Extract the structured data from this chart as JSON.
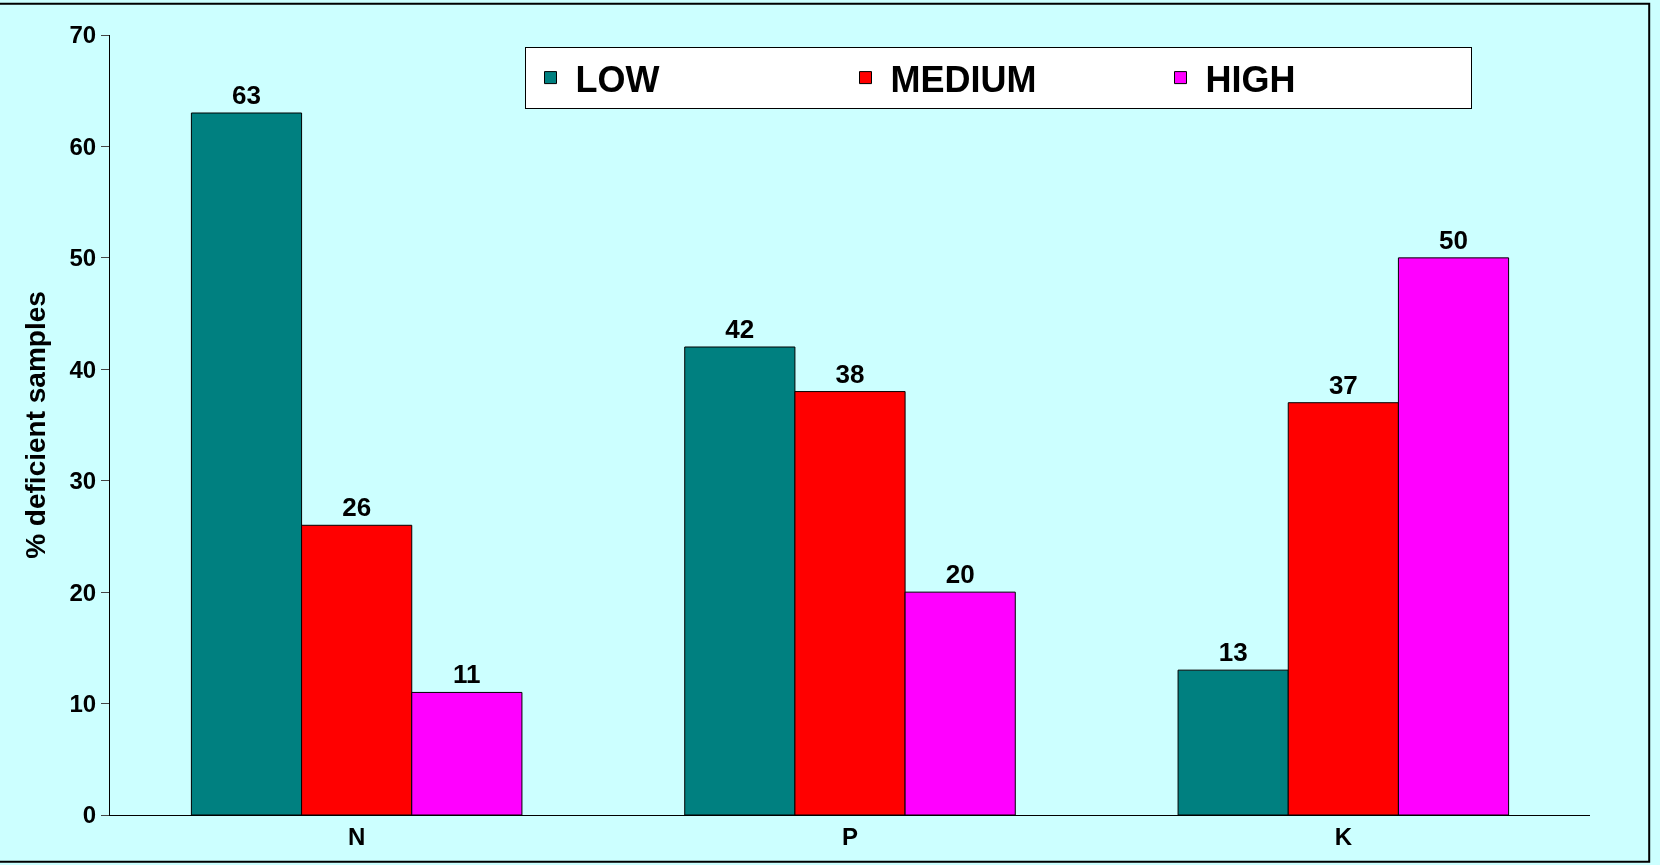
{
  "chart_data": {
    "type": "bar",
    "ylabel": "% deficient samples",
    "categories": [
      "N",
      "P",
      "K"
    ],
    "series": [
      {
        "name": "LOW",
        "color": "#008080",
        "values": [
          63,
          42,
          13
        ]
      },
      {
        "name": "MEDIUM",
        "color": "#ff0000",
        "values": [
          26,
          38,
          37
        ]
      },
      {
        "name": "HIGH",
        "color": "#ff00ff",
        "values": [
          11,
          20,
          50
        ]
      }
    ],
    "ylim": [
      0,
      70
    ],
    "yticks": [
      0,
      10,
      20,
      30,
      40,
      50,
      60,
      70
    ],
    "grid": false,
    "legend": "top",
    "data_labels": true
  }
}
